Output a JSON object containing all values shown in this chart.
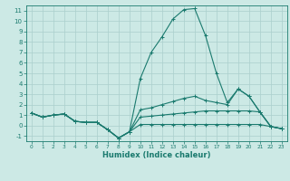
{
  "xlabel": "Humidex (Indice chaleur)",
  "xlim": [
    -0.5,
    23.5
  ],
  "ylim": [
    -1.5,
    11.5
  ],
  "xticks": [
    0,
    1,
    2,
    3,
    4,
    5,
    6,
    7,
    8,
    9,
    10,
    11,
    12,
    13,
    14,
    15,
    16,
    17,
    18,
    19,
    20,
    21,
    22,
    23
  ],
  "yticks": [
    -1,
    0,
    1,
    2,
    3,
    4,
    5,
    6,
    7,
    8,
    9,
    10,
    11
  ],
  "bg_color": "#cce9e5",
  "grid_color": "#aacfcc",
  "line_color": "#1a7a6e",
  "lines": [
    {
      "x": [
        0,
        1,
        2,
        3,
        4,
        5,
        6,
        7,
        8,
        9,
        10,
        11,
        12,
        13,
        14,
        15,
        16,
        17,
        18,
        19,
        20,
        21,
        22,
        23
      ],
      "y": [
        1.2,
        0.8,
        1.0,
        1.1,
        0.4,
        0.3,
        0.3,
        -0.4,
        -1.2,
        -0.6,
        4.5,
        7.0,
        8.5,
        10.2,
        11.1,
        11.2,
        8.6,
        5.0,
        2.2,
        3.5,
        2.8,
        1.3,
        -0.1,
        -0.3
      ]
    },
    {
      "x": [
        0,
        1,
        2,
        3,
        4,
        5,
        6,
        7,
        8,
        9,
        10,
        11,
        12,
        13,
        14,
        15,
        16,
        17,
        18,
        19,
        20,
        21,
        22,
        23
      ],
      "y": [
        1.2,
        0.8,
        1.0,
        1.1,
        0.4,
        0.3,
        0.3,
        -0.4,
        -1.2,
        -0.6,
        1.5,
        1.7,
        2.0,
        2.3,
        2.6,
        2.8,
        2.4,
        2.2,
        2.0,
        3.5,
        2.8,
        1.3,
        -0.1,
        -0.3
      ]
    },
    {
      "x": [
        0,
        1,
        2,
        3,
        4,
        5,
        6,
        7,
        8,
        9,
        10,
        11,
        12,
        13,
        14,
        15,
        16,
        17,
        18,
        19,
        20,
        21,
        22,
        23
      ],
      "y": [
        1.2,
        0.8,
        1.0,
        1.1,
        0.4,
        0.3,
        0.3,
        -0.4,
        -1.2,
        -0.6,
        0.8,
        0.9,
        1.0,
        1.1,
        1.2,
        1.3,
        1.4,
        1.4,
        1.4,
        1.4,
        1.4,
        1.3,
        -0.1,
        -0.3
      ]
    },
    {
      "x": [
        0,
        1,
        2,
        3,
        4,
        5,
        6,
        7,
        8,
        9,
        10,
        11,
        12,
        13,
        14,
        15,
        16,
        17,
        18,
        19,
        20,
        21,
        22,
        23
      ],
      "y": [
        1.2,
        0.8,
        1.0,
        1.1,
        0.4,
        0.3,
        0.3,
        -0.4,
        -1.2,
        -0.6,
        0.1,
        0.1,
        0.1,
        0.1,
        0.1,
        0.1,
        0.1,
        0.1,
        0.1,
        0.1,
        0.1,
        0.1,
        -0.1,
        -0.3
      ]
    }
  ]
}
